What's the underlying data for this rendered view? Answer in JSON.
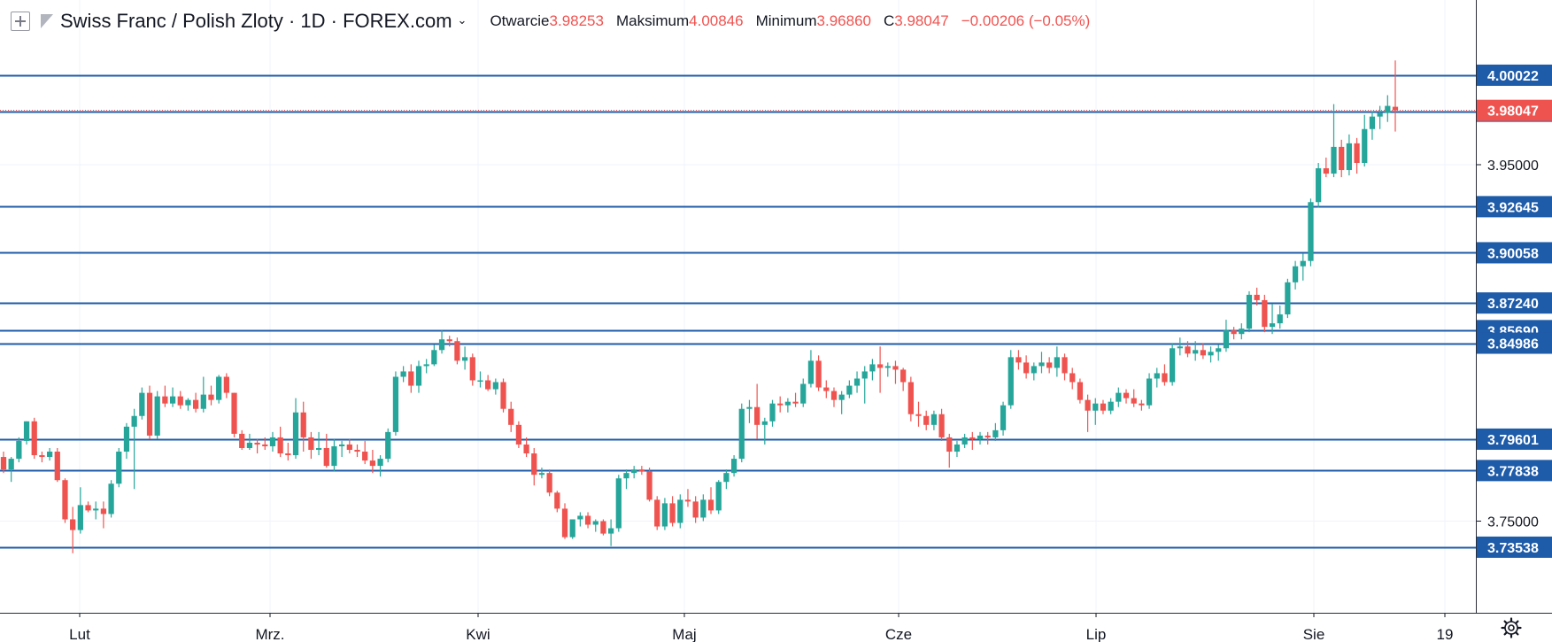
{
  "legend": {
    "title": "Swiss Franc / Polish Zloty · 1D · FOREX.com",
    "open_label": "Otwarcie",
    "open_value": "3.98253",
    "high_label": "Maksimum",
    "high_value": "4.00846",
    "low_label": "Minimum",
    "low_value": "3.96860",
    "close_label": "C",
    "close_value": "3.98047",
    "change": "−0.00206 (−0.05%)"
  },
  "chart_data": {
    "type": "candlestick",
    "y_ticks": [
      "3.95000",
      "3.75000"
    ],
    "x_ticks": [
      "Lut",
      "Mrz.",
      "Kwi",
      "Maj",
      "Cze",
      "Lip",
      "Sie",
      "19"
    ],
    "horizontal_levels": [
      "4.00022",
      "3.98000",
      "3.92645",
      "3.90058",
      "3.87240",
      "3.85690",
      "3.84986",
      "3.79601",
      "3.77838",
      "3.73538"
    ],
    "last_price": "3.98047",
    "candles": [
      [
        3.786,
        3.789,
        3.777,
        3.779
      ],
      [
        3.779,
        3.786,
        3.772,
        3.785
      ],
      [
        3.785,
        3.797,
        3.783,
        3.795
      ],
      [
        3.795,
        3.806,
        3.793,
        3.806
      ],
      [
        3.806,
        3.808,
        3.785,
        3.787
      ],
      [
        3.787,
        3.789,
        3.783,
        3.786
      ],
      [
        3.786,
        3.791,
        3.784,
        3.789
      ],
      [
        3.789,
        3.791,
        3.772,
        3.773
      ],
      [
        3.773,
        3.774,
        3.749,
        3.751
      ],
      [
        3.751,
        3.758,
        3.732,
        3.745
      ],
      [
        3.745,
        3.769,
        3.743,
        3.759
      ],
      [
        3.759,
        3.761,
        3.755,
        3.756
      ],
      [
        3.756,
        3.761,
        3.751,
        3.757
      ],
      [
        3.757,
        3.761,
        3.746,
        3.754
      ],
      [
        3.754,
        3.773,
        3.752,
        3.771
      ],
      [
        3.771,
        3.791,
        3.769,
        3.789
      ],
      [
        3.789,
        3.805,
        3.785,
        3.803
      ],
      [
        3.803,
        3.813,
        3.768,
        3.809
      ],
      [
        3.809,
        3.825,
        3.807,
        3.822
      ],
      [
        3.822,
        3.826,
        3.796,
        3.798
      ],
      [
        3.798,
        3.823,
        3.796,
        3.82
      ],
      [
        3.82,
        3.826,
        3.814,
        3.816
      ],
      [
        3.816,
        3.825,
        3.814,
        3.82
      ],
      [
        3.82,
        3.823,
        3.813,
        3.815
      ],
      [
        3.815,
        3.819,
        3.812,
        3.818
      ],
      [
        3.818,
        3.822,
        3.811,
        3.813
      ],
      [
        3.813,
        3.831,
        3.811,
        3.821
      ],
      [
        3.821,
        3.826,
        3.815,
        3.818
      ],
      [
        3.818,
        3.832,
        3.816,
        3.831
      ],
      [
        3.831,
        3.833,
        3.819,
        3.822
      ],
      [
        3.822,
        3.822,
        3.797,
        3.799
      ],
      [
        3.799,
        3.801,
        3.79,
        3.791
      ],
      [
        3.791,
        3.799,
        3.79,
        3.794
      ],
      [
        3.794,
        3.796,
        3.788,
        3.793
      ],
      [
        3.793,
        3.797,
        3.79,
        3.792
      ],
      [
        3.792,
        3.8,
        3.789,
        3.797
      ],
      [
        3.797,
        3.803,
        3.786,
        3.788
      ],
      [
        3.788,
        3.794,
        3.784,
        3.787
      ],
      [
        3.787,
        3.819,
        3.785,
        3.811
      ],
      [
        3.811,
        3.817,
        3.789,
        3.797
      ],
      [
        3.797,
        3.8,
        3.785,
        3.79
      ],
      [
        3.79,
        3.8,
        3.787,
        3.791
      ],
      [
        3.791,
        3.799,
        3.78,
        3.781
      ],
      [
        3.781,
        3.796,
        3.778,
        3.792
      ],
      [
        3.792,
        3.795,
        3.786,
        3.793
      ],
      [
        3.793,
        3.796,
        3.788,
        3.79
      ],
      [
        3.79,
        3.793,
        3.786,
        3.789
      ],
      [
        3.789,
        3.795,
        3.782,
        3.784
      ],
      [
        3.784,
        3.79,
        3.777,
        3.781
      ],
      [
        3.781,
        3.787,
        3.775,
        3.785
      ],
      [
        3.785,
        3.802,
        3.783,
        3.8
      ],
      [
        3.8,
        3.834,
        3.798,
        3.831
      ],
      [
        3.831,
        3.837,
        3.828,
        3.834
      ],
      [
        3.834,
        3.838,
        3.822,
        3.826
      ],
      [
        3.826,
        3.84,
        3.822,
        3.837
      ],
      [
        3.837,
        3.841,
        3.833,
        3.838
      ],
      [
        3.838,
        3.849,
        3.837,
        3.846
      ],
      [
        3.846,
        3.857,
        3.844,
        3.852
      ],
      [
        3.852,
        3.854,
        3.848,
        3.851
      ],
      [
        3.851,
        3.853,
        3.838,
        3.84
      ],
      [
        3.84,
        3.848,
        3.835,
        3.842
      ],
      [
        3.842,
        3.844,
        3.826,
        3.829
      ],
      [
        3.829,
        3.834,
        3.825,
        3.829
      ],
      [
        3.829,
        3.832,
        3.823,
        3.824
      ],
      [
        3.824,
        3.83,
        3.821,
        3.828
      ],
      [
        3.828,
        3.83,
        3.811,
        3.813
      ],
      [
        3.813,
        3.817,
        3.8,
        3.804
      ],
      [
        3.804,
        3.806,
        3.791,
        3.793
      ],
      [
        3.793,
        3.797,
        3.786,
        3.788
      ],
      [
        3.788,
        3.791,
        3.77,
        3.776
      ],
      [
        3.776,
        3.78,
        3.774,
        3.777
      ],
      [
        3.777,
        3.779,
        3.764,
        3.766
      ],
      [
        3.766,
        3.767,
        3.755,
        3.757
      ],
      [
        3.757,
        3.76,
        3.74,
        3.741
      ],
      [
        3.741,
        3.751,
        3.74,
        3.751
      ],
      [
        3.751,
        3.755,
        3.747,
        3.753
      ],
      [
        3.753,
        3.755,
        3.746,
        3.748
      ],
      [
        3.748,
        3.751,
        3.744,
        3.75
      ],
      [
        3.75,
        3.751,
        3.742,
        3.743
      ],
      [
        3.743,
        3.751,
        3.736,
        3.746
      ],
      [
        3.746,
        3.776,
        3.744,
        3.774
      ],
      [
        3.774,
        3.779,
        3.768,
        3.777
      ],
      [
        3.777,
        3.781,
        3.774,
        3.779
      ],
      [
        3.779,
        3.781,
        3.776,
        3.778
      ],
      [
        3.778,
        3.78,
        3.761,
        3.762
      ],
      [
        3.762,
        3.764,
        3.745,
        3.747
      ],
      [
        3.747,
        3.763,
        3.745,
        3.76
      ],
      [
        3.76,
        3.764,
        3.747,
        3.749
      ],
      [
        3.749,
        3.765,
        3.746,
        3.762
      ],
      [
        3.762,
        3.768,
        3.758,
        3.761
      ],
      [
        3.761,
        3.764,
        3.749,
        3.752
      ],
      [
        3.752,
        3.765,
        3.75,
        3.762
      ],
      [
        3.762,
        3.769,
        3.754,
        3.756
      ],
      [
        3.756,
        3.773,
        3.754,
        3.772
      ],
      [
        3.772,
        3.779,
        3.768,
        3.777
      ],
      [
        3.777,
        3.787,
        3.775,
        3.785
      ],
      [
        3.785,
        3.816,
        3.783,
        3.813
      ],
      [
        3.813,
        3.818,
        3.805,
        3.814
      ],
      [
        3.814,
        3.827,
        3.796,
        3.804
      ],
      [
        3.804,
        3.808,
        3.793,
        3.806
      ],
      [
        3.806,
        3.818,
        3.803,
        3.816
      ],
      [
        3.816,
        3.82,
        3.811,
        3.815
      ],
      [
        3.815,
        3.819,
        3.811,
        3.817
      ],
      [
        3.817,
        3.822,
        3.814,
        3.816
      ],
      [
        3.816,
        3.83,
        3.814,
        3.827
      ],
      [
        3.827,
        3.846,
        3.825,
        3.84
      ],
      [
        3.84,
        3.843,
        3.823,
        3.825
      ],
      [
        3.825,
        3.829,
        3.819,
        3.823
      ],
      [
        3.823,
        3.825,
        3.814,
        3.818
      ],
      [
        3.818,
        3.823,
        3.81,
        3.821
      ],
      [
        3.821,
        3.829,
        3.819,
        3.826
      ],
      [
        3.826,
        3.834,
        3.822,
        3.83
      ],
      [
        3.83,
        3.837,
        3.816,
        3.834
      ],
      [
        3.834,
        3.841,
        3.829,
        3.838
      ],
      [
        3.838,
        3.848,
        3.822,
        3.836
      ],
      [
        3.836,
        3.839,
        3.831,
        3.837
      ],
      [
        3.837,
        3.84,
        3.827,
        3.835
      ],
      [
        3.835,
        3.836,
        3.823,
        3.828
      ],
      [
        3.828,
        3.831,
        3.806,
        3.81
      ],
      [
        3.81,
        3.817,
        3.803,
        3.809
      ],
      [
        3.809,
        3.812,
        3.801,
        3.804
      ],
      [
        3.804,
        3.812,
        3.801,
        3.81
      ],
      [
        3.81,
        3.813,
        3.795,
        3.797
      ],
      [
        3.797,
        3.799,
        3.78,
        3.789
      ],
      [
        3.789,
        3.795,
        3.786,
        3.793
      ],
      [
        3.793,
        3.799,
        3.791,
        3.797
      ],
      [
        3.797,
        3.8,
        3.79,
        3.796
      ],
      [
        3.796,
        3.8,
        3.793,
        3.798
      ],
      [
        3.798,
        3.8,
        3.793,
        3.797
      ],
      [
        3.797,
        3.805,
        3.795,
        3.801
      ],
      [
        3.801,
        3.817,
        3.798,
        3.815
      ],
      [
        3.815,
        3.846,
        3.813,
        3.842
      ],
      [
        3.842,
        3.846,
        3.835,
        3.839
      ],
      [
        3.839,
        3.843,
        3.83,
        3.833
      ],
      [
        3.833,
        3.839,
        3.829,
        3.837
      ],
      [
        3.837,
        3.845,
        3.833,
        3.839
      ],
      [
        3.839,
        3.842,
        3.833,
        3.836
      ],
      [
        3.836,
        3.848,
        3.831,
        3.842
      ],
      [
        3.842,
        3.844,
        3.829,
        3.833
      ],
      [
        3.833,
        3.836,
        3.824,
        3.828
      ],
      [
        3.828,
        3.83,
        3.816,
        3.818
      ],
      [
        3.818,
        3.821,
        3.8,
        3.812
      ],
      [
        3.812,
        3.819,
        3.804,
        3.816
      ],
      [
        3.816,
        3.818,
        3.81,
        3.812
      ],
      [
        3.812,
        3.819,
        3.81,
        3.817
      ],
      [
        3.817,
        3.825,
        3.814,
        3.822
      ],
      [
        3.822,
        3.824,
        3.816,
        3.819
      ],
      [
        3.819,
        3.824,
        3.814,
        3.816
      ],
      [
        3.816,
        3.818,
        3.812,
        3.815
      ],
      [
        3.815,
        3.833,
        3.813,
        3.83
      ],
      [
        3.83,
        3.836,
        3.825,
        3.833
      ],
      [
        3.833,
        3.838,
        3.826,
        3.828
      ],
      [
        3.828,
        3.85,
        3.826,
        3.847
      ],
      [
        3.847,
        3.853,
        3.843,
        3.848
      ],
      [
        3.848,
        3.851,
        3.842,
        3.844
      ],
      [
        3.844,
        3.851,
        3.84,
        3.846
      ],
      [
        3.846,
        3.85,
        3.841,
        3.843
      ],
      [
        3.843,
        3.848,
        3.839,
        3.845
      ],
      [
        3.845,
        3.849,
        3.84,
        3.847
      ],
      [
        3.847,
        3.863,
        3.845,
        3.857
      ],
      [
        3.857,
        3.859,
        3.852,
        3.855
      ],
      [
        3.855,
        3.861,
        3.852,
        3.858
      ],
      [
        3.858,
        3.879,
        3.856,
        3.877
      ],
      [
        3.877,
        3.881,
        3.871,
        3.874
      ],
      [
        3.874,
        3.877,
        3.856,
        3.859
      ],
      [
        3.859,
        3.872,
        3.855,
        3.861
      ],
      [
        3.861,
        3.871,
        3.858,
        3.866
      ],
      [
        3.866,
        3.886,
        3.864,
        3.884
      ],
      [
        3.884,
        3.896,
        3.88,
        3.893
      ],
      [
        3.893,
        3.9,
        3.885,
        3.896
      ],
      [
        3.896,
        3.931,
        3.893,
        3.929
      ],
      [
        3.929,
        3.951,
        3.926,
        3.948
      ],
      [
        3.948,
        3.954,
        3.943,
        3.945
      ],
      [
        3.945,
        3.984,
        3.943,
        3.96
      ],
      [
        3.96,
        3.964,
        3.943,
        3.947
      ],
      [
        3.947,
        3.967,
        3.944,
        3.962
      ],
      [
        3.962,
        3.965,
        3.945,
        3.951
      ],
      [
        3.951,
        3.978,
        3.949,
        3.97
      ],
      [
        3.97,
        3.98,
        3.964,
        3.977
      ],
      [
        3.977,
        3.983,
        3.97,
        3.979
      ],
      [
        3.979,
        3.989,
        3.974,
        3.983
      ],
      [
        3.9825,
        4.0085,
        3.9686,
        3.9805
      ]
    ]
  },
  "toolbar": {
    "settings_icon": "gear-icon"
  },
  "colors": {
    "up": "#26a69a",
    "down": "#ef5350",
    "level_line": "#1e5ba8",
    "level_label_bg": "#1e5ba8",
    "price_label_bg": "#ef5350",
    "grid": "#f0f3fa",
    "text": "#131722"
  }
}
